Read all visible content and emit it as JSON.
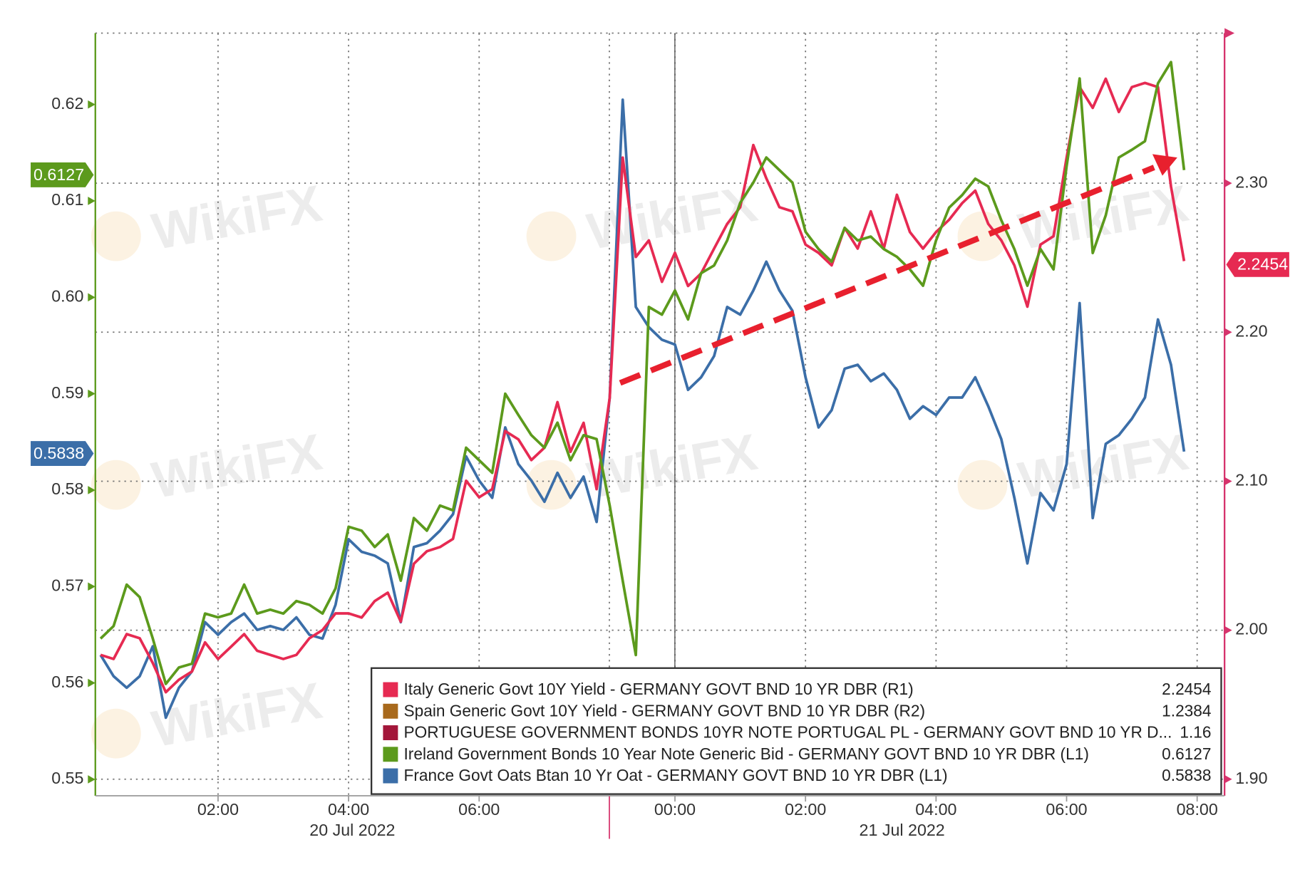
{
  "chart_data": {
    "type": "line",
    "watermark": "WikiFX",
    "x": [
      0.2,
      0.4,
      0.6,
      0.8,
      1,
      1.2,
      1.4,
      1.6,
      1.8,
      2,
      2.2,
      2.4,
      2.6,
      2.8,
      3,
      3.2,
      3.4,
      3.6,
      3.8,
      4,
      4.2,
      4.4,
      4.6,
      4.8,
      5,
      5.2,
      5.4,
      5.6,
      5.8,
      6,
      6.2,
      6.4,
      6.6,
      6.8,
      7,
      7.2,
      7.4,
      7.6,
      7.8,
      8,
      8.2,
      8.4,
      8.6,
      8.8,
      9,
      9.2,
      9.4,
      9.6,
      9.8,
      10,
      10.2,
      10.4,
      10.6,
      10.8,
      11,
      11.2,
      11.4,
      11.6,
      11.8,
      12,
      12.2,
      12.4,
      12.6,
      12.8,
      13,
      13.2,
      13.4,
      13.6,
      13.8,
      14,
      14.2,
      14.4,
      14.6,
      14.8,
      15,
      15.2,
      15.4,
      15.6,
      15.8,
      16,
      16.2,
      16.4,
      16.6,
      16.8
    ],
    "xlim": [
      0.12,
      17.42
    ],
    "xticks": [
      {
        "value": 2,
        "label": "02:00"
      },
      {
        "value": 4,
        "label": "04:00"
      },
      {
        "value": 6,
        "label": "06:00"
      },
      {
        "value": 9,
        "label": "00:00"
      },
      {
        "value": 11,
        "label": "02:00"
      },
      {
        "value": 13,
        "label": "04:00"
      },
      {
        "value": 15,
        "label": "06:00"
      },
      {
        "value": 17,
        "label": "08:00"
      }
    ],
    "date_labels": [
      "20 Jul 2022",
      "21 Jul 2022"
    ],
    "ylim": [
      0.5483,
      0.6274
    ],
    "yticks": [
      0.55,
      0.56,
      0.57,
      0.58,
      0.59,
      {
        "value": 0.6,
        "label": "0.60"
      },
      0.61,
      0.62
    ],
    "y2lim": [
      1.8889,
      2.4007
    ],
    "y2ticks": [
      {
        "value": 1.9,
        "label": "1.90"
      },
      {
        "value": 2,
        "label": "2.00"
      },
      {
        "value": 2.1,
        "label": "2.10"
      },
      {
        "value": 2.2,
        "label": "2.20"
      },
      {
        "value": 2.3,
        "label": "2.30"
      }
    ],
    "grid": true,
    "legend": "bottom-right",
    "series": [
      {
        "name": "Italy Generic Govt 10Y Yield - GERMANY GOVT BND 10 YR DBR (R1)",
        "color": "#e62a52",
        "axis": "y2",
        "last_value": 2.2454,
        "values": [
          1.9834,
          1.9807,
          1.9974,
          1.9946,
          1.9779,
          1.9584,
          1.9668,
          1.9723,
          1.9918,
          1.9807,
          1.989,
          1.9974,
          1.9862,
          1.9834,
          1.9807,
          1.9834,
          1.9946,
          2.0001,
          2.0113,
          2.0113,
          2.0085,
          2.0196,
          2.0252,
          2.0057,
          2.0446,
          2.053,
          2.0558,
          2.0613,
          2.1003,
          2.0892,
          2.0947,
          2.1337,
          2.1281,
          2.1142,
          2.1225,
          2.1531,
          2.1197,
          2.1392,
          2.0947,
          2.1559,
          2.3172,
          2.2505,
          2.2616,
          2.2338,
          2.2533,
          2.231,
          2.2394,
          2.2561,
          2.2727,
          2.2839,
          2.3256,
          2.3033,
          2.2839,
          2.2811,
          2.2588,
          2.2533,
          2.2449,
          2.27,
          2.2561,
          2.2811,
          2.2561,
          2.2922,
          2.2672,
          2.2561,
          2.2672,
          2.2755,
          2.2866,
          2.295,
          2.2727,
          2.2616,
          2.2449,
          2.2171,
          2.2588,
          2.2644,
          2.3172,
          2.3645,
          2.3506,
          2.3701,
          2.3478,
          2.3645,
          2.3673,
          2.3645,
          2.2978,
          2.2477
        ]
      },
      {
        "name": "Spain Generic Govt 10Y Yield - GERMANY GOVT BND 10 YR DBR (R2)",
        "color": "#a8691c",
        "axis": "y2",
        "last_value": 1.2384
      },
      {
        "name": "PORTUGUESE GOVERNMENT BONDS 10YR NOTE PORTUGAL PL - GERMANY GOVT BND 10 YR D...",
        "color": "#a3163a",
        "axis": "y2",
        "last_value": 1.16
      },
      {
        "name": "Ireland Government Bonds 10 Year Note Generic Bid - GERMANY GOVT BND 10 YR DBR (L1)",
        "color": "#5c9a1c",
        "axis": "y",
        "last_value": 0.6127,
        "values": [
          0.5646,
          0.5659,
          0.5702,
          0.5689,
          0.5646,
          0.5599,
          0.5616,
          0.562,
          0.5672,
          0.5668,
          0.5672,
          0.5702,
          0.5672,
          0.5676,
          0.5672,
          0.5685,
          0.5681,
          0.5672,
          0.5698,
          0.5762,
          0.5758,
          0.5741,
          0.5754,
          0.5706,
          0.5771,
          0.5758,
          0.5784,
          0.5779,
          0.5844,
          0.5831,
          0.5818,
          0.59,
          0.5878,
          0.5857,
          0.5844,
          0.587,
          0.5831,
          0.5857,
          0.5853,
          0.5784,
          0.5706,
          0.5629,
          0.599,
          0.5982,
          0.6007,
          0.5977,
          0.6025,
          0.6033,
          0.6059,
          0.6098,
          0.6119,
          0.6145,
          0.6132,
          0.6119,
          0.6068,
          0.605,
          0.6037,
          0.6072,
          0.6059,
          0.6063,
          0.605,
          0.6042,
          0.6029,
          0.6012,
          0.6059,
          0.6093,
          0.6106,
          0.6123,
          0.6115,
          0.608,
          0.605,
          0.6012,
          0.605,
          0.6029,
          0.6136,
          0.6227,
          0.6046,
          0.6085,
          0.6145,
          0.6153,
          0.6162,
          0.6222,
          0.6244,
          0.6132
        ]
      },
      {
        "name": "France Govt Oats Btan 10 Yr Oat - GERMANY GOVT BND 10 YR DBR (L1)",
        "color": "#3b6ea8",
        "axis": "y",
        "last_value": 0.5838,
        "values": [
          0.5629,
          0.5607,
          0.5595,
          0.5607,
          0.5638,
          0.5564,
          0.5595,
          0.5612,
          0.5663,
          0.565,
          0.5663,
          0.5672,
          0.5655,
          0.5659,
          0.5655,
          0.5668,
          0.565,
          0.5646,
          0.5681,
          0.5749,
          0.5736,
          0.5732,
          0.5724,
          0.5663,
          0.5741,
          0.5745,
          0.5758,
          0.5775,
          0.5835,
          0.581,
          0.5792,
          0.5865,
          0.5827,
          0.581,
          0.5788,
          0.5818,
          0.5792,
          0.5814,
          0.5767,
          0.5896,
          0.6205,
          0.599,
          0.5969,
          0.5956,
          0.5951,
          0.5904,
          0.5917,
          0.5939,
          0.599,
          0.5982,
          0.6007,
          0.6037,
          0.6007,
          0.5986,
          0.5917,
          0.5865,
          0.5883,
          0.5926,
          0.593,
          0.5913,
          0.5921,
          0.5904,
          0.5874,
          0.5887,
          0.5878,
          0.5896,
          0.5896,
          0.5917,
          0.5887,
          0.5853,
          0.5792,
          0.5724,
          0.5797,
          0.5779,
          0.5827,
          0.5994,
          0.5771,
          0.5848,
          0.5857,
          0.5874,
          0.5896,
          0.5977,
          0.593,
          0.584
        ]
      }
    ]
  }
}
